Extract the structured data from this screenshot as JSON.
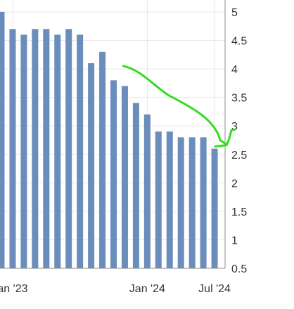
{
  "colors": {
    "bar": "#6a8dbb",
    "grid": "#e6e6e6",
    "axis": "#8c8c8c",
    "tick_text": "#333333",
    "annotation": "#33dd22"
  },
  "chart_data": {
    "type": "bar",
    "title": "",
    "xlabel": "",
    "ylabel": "",
    "ylim": [
      0.5,
      5
    ],
    "yaxis_side": "right",
    "y_ticks": [
      "0.5",
      "1",
      "1.5",
      "2",
      "2.5",
      "3",
      "3.5",
      "4",
      "4.5",
      "5"
    ],
    "x_ticks": [
      {
        "label": "an '23",
        "index": 1
      },
      {
        "label": "Jan '24",
        "index": 13
      },
      {
        "label": "Jul '24",
        "index": 19
      }
    ],
    "values": [
      5.0,
      4.7,
      4.6,
      4.7,
      4.7,
      4.6,
      4.7,
      4.6,
      4.1,
      4.3,
      3.8,
      3.7,
      3.4,
      3.2,
      2.9,
      2.9,
      2.8,
      2.8,
      2.8,
      2.6
    ],
    "grid": true,
    "legend": "none",
    "annotation": {
      "shape": "hand-drawn arrow",
      "from": {
        "index": 11,
        "value": 4.05
      },
      "to": {
        "index": 20,
        "value": 2.65
      }
    }
  }
}
